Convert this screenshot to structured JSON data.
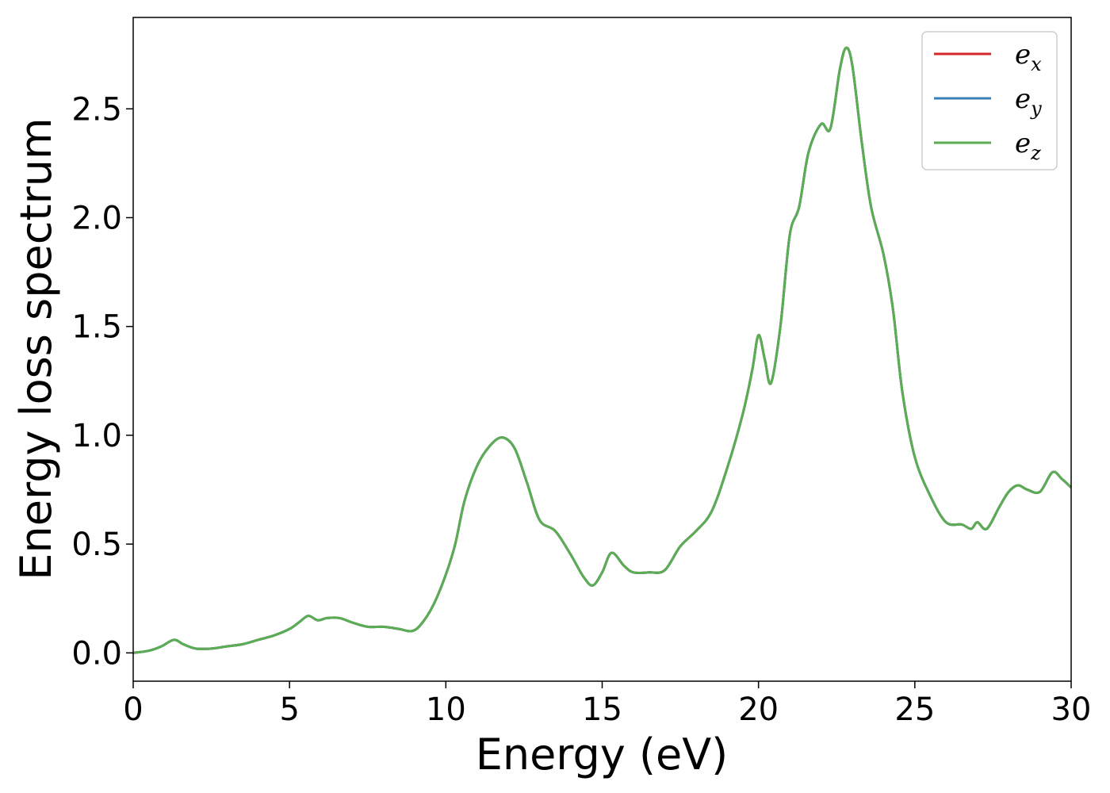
{
  "chart_data": {
    "type": "line",
    "title": "",
    "xlabel": "Energy (eV)",
    "ylabel": "Energy loss spectrum",
    "xlim": [
      0,
      30
    ],
    "ylim": [
      -0.13,
      2.92
    ],
    "xticks": [
      0,
      5,
      10,
      15,
      20,
      25,
      30
    ],
    "yticks": [
      0.0,
      0.5,
      1.0,
      1.5,
      2.0,
      2.5
    ],
    "grid": false,
    "legend": {
      "position": "top-right"
    },
    "colors": {
      "e_x": "#d62728",
      "e_y": "#3a7fb5",
      "e_z": "#5aad52"
    },
    "x": [
      0,
      0.5,
      0.9,
      1.3,
      1.6,
      2.0,
      2.5,
      3.0,
      3.5,
      4.0,
      4.5,
      5.0,
      5.3,
      5.6,
      5.9,
      6.2,
      6.6,
      7.0,
      7.5,
      8.0,
      8.5,
      8.9,
      9.2,
      9.6,
      10.0,
      10.3,
      10.6,
      11.0,
      11.4,
      11.8,
      12.2,
      12.6,
      13.0,
      13.5,
      14.0,
      14.4,
      14.7,
      15.0,
      15.3,
      15.7,
      16.0,
      16.5,
      17.0,
      17.5,
      18.0,
      18.5,
      19.0,
      19.5,
      19.8,
      20.0,
      20.2,
      20.4,
      20.7,
      21.0,
      21.3,
      21.6,
      22.0,
      22.3,
      22.6,
      22.8,
      23.0,
      23.3,
      23.6,
      24.0,
      24.3,
      24.6,
      25.0,
      25.5,
      26.0,
      26.5,
      26.8,
      27.0,
      27.3,
      27.7,
      28.0,
      28.3,
      28.6,
      29.0,
      29.4,
      29.7,
      30.0
    ],
    "series": [
      {
        "name": "e_x",
        "values": [
          0.0,
          0.01,
          0.03,
          0.06,
          0.04,
          0.02,
          0.02,
          0.03,
          0.04,
          0.06,
          0.08,
          0.11,
          0.14,
          0.17,
          0.15,
          0.16,
          0.16,
          0.14,
          0.12,
          0.12,
          0.11,
          0.1,
          0.13,
          0.22,
          0.36,
          0.5,
          0.7,
          0.86,
          0.95,
          0.99,
          0.94,
          0.78,
          0.61,
          0.56,
          0.45,
          0.35,
          0.31,
          0.37,
          0.46,
          0.4,
          0.37,
          0.37,
          0.38,
          0.49,
          0.56,
          0.65,
          0.85,
          1.1,
          1.3,
          1.46,
          1.35,
          1.24,
          1.5,
          1.92,
          2.05,
          2.3,
          2.43,
          2.41,
          2.68,
          2.78,
          2.7,
          2.35,
          2.05,
          1.83,
          1.58,
          1.2,
          0.9,
          0.72,
          0.6,
          0.59,
          0.57,
          0.6,
          0.57,
          0.67,
          0.74,
          0.77,
          0.75,
          0.74,
          0.83,
          0.8,
          0.76
        ]
      },
      {
        "name": "e_y",
        "values": [
          0.0,
          0.01,
          0.03,
          0.06,
          0.04,
          0.02,
          0.02,
          0.03,
          0.04,
          0.06,
          0.08,
          0.11,
          0.14,
          0.17,
          0.15,
          0.16,
          0.16,
          0.14,
          0.12,
          0.12,
          0.11,
          0.1,
          0.13,
          0.22,
          0.36,
          0.5,
          0.7,
          0.86,
          0.95,
          0.99,
          0.94,
          0.78,
          0.61,
          0.56,
          0.45,
          0.35,
          0.31,
          0.37,
          0.46,
          0.4,
          0.37,
          0.37,
          0.38,
          0.49,
          0.56,
          0.65,
          0.85,
          1.1,
          1.3,
          1.46,
          1.35,
          1.24,
          1.5,
          1.92,
          2.05,
          2.3,
          2.43,
          2.41,
          2.68,
          2.78,
          2.7,
          2.35,
          2.05,
          1.83,
          1.58,
          1.2,
          0.9,
          0.72,
          0.6,
          0.59,
          0.57,
          0.6,
          0.57,
          0.67,
          0.74,
          0.77,
          0.75,
          0.74,
          0.83,
          0.8,
          0.76
        ]
      },
      {
        "name": "e_z",
        "values": [
          0.0,
          0.01,
          0.03,
          0.06,
          0.04,
          0.02,
          0.02,
          0.03,
          0.04,
          0.06,
          0.08,
          0.11,
          0.14,
          0.17,
          0.15,
          0.16,
          0.16,
          0.14,
          0.12,
          0.12,
          0.11,
          0.1,
          0.13,
          0.22,
          0.36,
          0.5,
          0.7,
          0.86,
          0.95,
          0.99,
          0.94,
          0.78,
          0.61,
          0.56,
          0.45,
          0.35,
          0.31,
          0.37,
          0.46,
          0.4,
          0.37,
          0.37,
          0.38,
          0.49,
          0.56,
          0.65,
          0.85,
          1.1,
          1.3,
          1.46,
          1.35,
          1.24,
          1.5,
          1.92,
          2.05,
          2.3,
          2.43,
          2.41,
          2.68,
          2.78,
          2.7,
          2.35,
          2.05,
          1.83,
          1.58,
          1.2,
          0.9,
          0.72,
          0.6,
          0.59,
          0.57,
          0.6,
          0.57,
          0.67,
          0.74,
          0.77,
          0.75,
          0.74,
          0.83,
          0.8,
          0.76
        ]
      }
    ],
    "legend_entries": [
      {
        "base": "e",
        "sub": "x",
        "series": "e_x"
      },
      {
        "base": "e",
        "sub": "y",
        "series": "e_y"
      },
      {
        "base": "e",
        "sub": "z",
        "series": "e_z"
      }
    ]
  }
}
